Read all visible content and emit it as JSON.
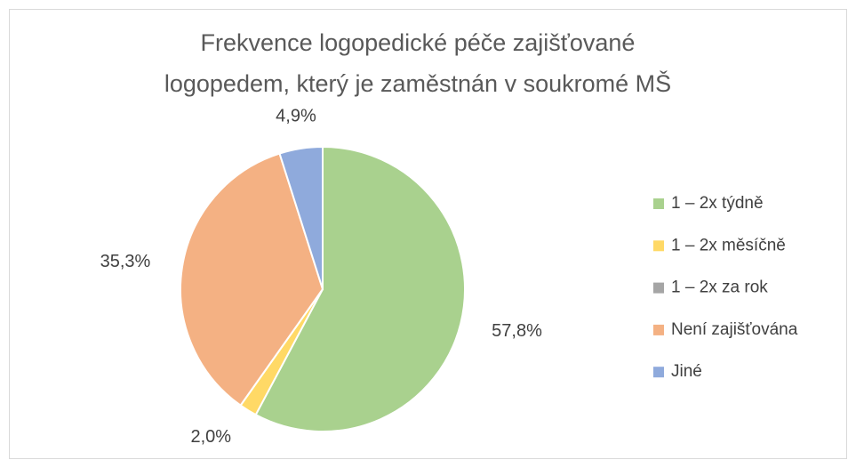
{
  "chart_data": {
    "type": "pie",
    "title": [
      "Frekvence logopedické péče zajišťované",
      "logopedem, který je zaměstnán v  soukromé MŠ"
    ],
    "categories": [
      "1 – 2x týdně",
      "1 – 2x měsíčně",
      "1 – 2x za rok",
      "Není zajišťována",
      "Jiné"
    ],
    "values": [
      57.8,
      2.0,
      0,
      35.3,
      4.9
    ],
    "value_labels": [
      "57,8%",
      "2,0%",
      null,
      "35,3%",
      "4,9%"
    ],
    "colors": [
      "#a9d18e",
      "#ffd966",
      "#a5a5a5",
      "#f4b183",
      "#8faadc"
    ],
    "legend": "right"
  }
}
